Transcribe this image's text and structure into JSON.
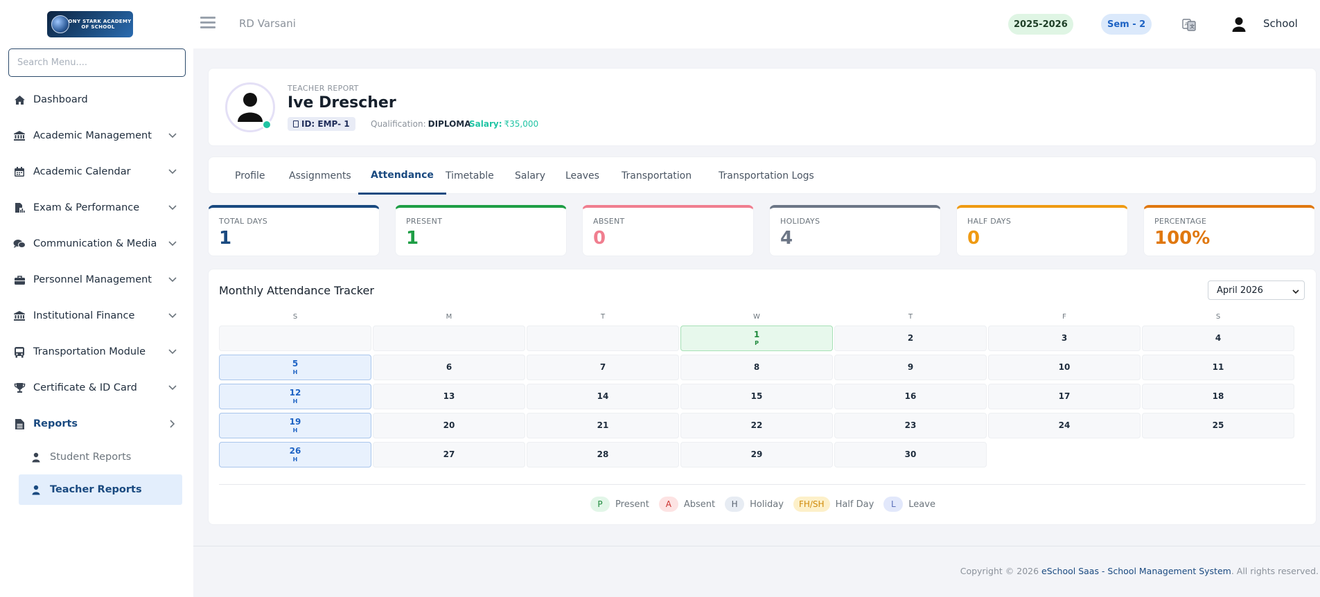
{
  "app": {
    "logo_text": "TONY STARK ACADEMY OF SCHOOL"
  },
  "sidebar": {
    "search_placeholder": "Search Menu....",
    "items": [
      {
        "label": "Dashboard",
        "icon": "home-icon"
      },
      {
        "label": "Academic Management",
        "icon": "bank-icon"
      },
      {
        "label": "Academic Calendar",
        "icon": "calendar-icon"
      },
      {
        "label": "Exam & Performance",
        "icon": "file-chart-icon"
      },
      {
        "label": "Communication & Media",
        "icon": "chat-icon"
      },
      {
        "label": "Personnel Management",
        "icon": "briefcase-icon"
      },
      {
        "label": "Institutional Finance",
        "icon": "bank-icon"
      },
      {
        "label": "Transportation Module",
        "icon": "bus-icon"
      },
      {
        "label": "Certificate & ID Card",
        "icon": "trophy-icon"
      },
      {
        "label": "Reports",
        "icon": "report-icon"
      }
    ],
    "sub_items": [
      {
        "label": "Student Reports",
        "icon": "user-icon"
      },
      {
        "label": "Teacher Reports",
        "icon": "user-icon"
      }
    ]
  },
  "topbar": {
    "user_name": "RD Varsani",
    "year_badge": "2025-2026",
    "sem_badge": "Sem - 2",
    "school_label": "School"
  },
  "profile": {
    "report_label": "TEACHER REPORT",
    "name": "Ive Drescher",
    "id": "ID: EMP- 1",
    "qualification_label": "Qualification:",
    "qualification": "DIPLOMA",
    "salary_label": "Salary:",
    "salary": "₹35,000"
  },
  "tabs": [
    "Profile",
    "Assignments",
    "Attendance",
    "Timetable",
    "Salary",
    "Leaves",
    "Transportation",
    "Transportation Logs"
  ],
  "stats": [
    {
      "label": "TOTAL DAYS",
      "value": "1",
      "color": "#1a4a80"
    },
    {
      "label": "PRESENT",
      "value": "1",
      "color": "#1e9e45"
    },
    {
      "label": "ABSENT",
      "value": "0",
      "color": "#f07e8f"
    },
    {
      "label": "HOLIDAYS",
      "value": "4",
      "color": "#6c7686"
    },
    {
      "label": "HALF DAYS",
      "value": "0",
      "color": "#ef9a12"
    },
    {
      "label": "PERCENTAGE",
      "value": "100%",
      "color": "#e0780f"
    }
  ],
  "tracker": {
    "title": "Monthly Attendance Tracker",
    "month": "April 2026",
    "weekdays": [
      "S",
      "M",
      "T",
      "W",
      "T",
      "F",
      "S"
    ],
    "days": [
      {
        "d": "1",
        "code": "P"
      },
      {
        "d": "2",
        "code": ""
      },
      {
        "d": "3",
        "code": ""
      },
      {
        "d": "4",
        "code": ""
      },
      {
        "d": "5",
        "code": "H"
      },
      {
        "d": "6",
        "code": ""
      },
      {
        "d": "7",
        "code": ""
      },
      {
        "d": "8",
        "code": ""
      },
      {
        "d": "9",
        "code": ""
      },
      {
        "d": "10",
        "code": ""
      },
      {
        "d": "11",
        "code": ""
      },
      {
        "d": "12",
        "code": "H"
      },
      {
        "d": "13",
        "code": ""
      },
      {
        "d": "14",
        "code": ""
      },
      {
        "d": "15",
        "code": ""
      },
      {
        "d": "16",
        "code": ""
      },
      {
        "d": "17",
        "code": ""
      },
      {
        "d": "18",
        "code": ""
      },
      {
        "d": "19",
        "code": "H"
      },
      {
        "d": "20",
        "code": ""
      },
      {
        "d": "21",
        "code": ""
      },
      {
        "d": "22",
        "code": ""
      },
      {
        "d": "23",
        "code": ""
      },
      {
        "d": "24",
        "code": ""
      },
      {
        "d": "25",
        "code": ""
      },
      {
        "d": "26",
        "code": "H"
      },
      {
        "d": "27",
        "code": ""
      },
      {
        "d": "28",
        "code": ""
      },
      {
        "d": "29",
        "code": ""
      },
      {
        "d": "30",
        "code": ""
      }
    ],
    "legend": [
      {
        "chip": "P",
        "label": "Present",
        "bg": "#e2f6e8",
        "fg": "#1e8a3c"
      },
      {
        "chip": "A",
        "label": "Absent",
        "bg": "#fde3e3",
        "fg": "#c9302c"
      },
      {
        "chip": "H",
        "label": "Holiday",
        "bg": "#e7ecf3",
        "fg": "#5a6472"
      },
      {
        "chip": "FH/SH",
        "label": "Half Day",
        "bg": "#fdf0c9",
        "fg": "#d08a0a"
      },
      {
        "chip": "L",
        "label": "Leave",
        "bg": "#e2e8fb",
        "fg": "#5a6fb8"
      }
    ]
  },
  "footer": {
    "prefix": "Copyright © 2026 ",
    "link": "eSchool Saas - School Management System",
    "suffix": ". All rights reserved."
  }
}
